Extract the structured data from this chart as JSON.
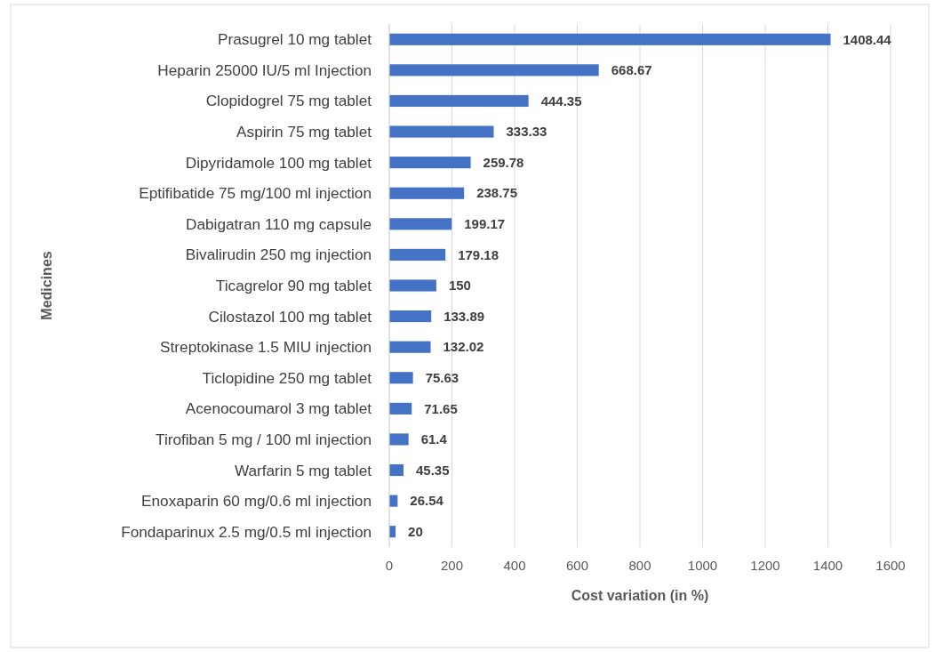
{
  "chart_data": {
    "type": "bar",
    "orientation": "horizontal",
    "xlabel": "Cost variation (in %)",
    "ylabel": "Medicines",
    "categories": [
      "Prasugrel 10 mg tablet",
      "Heparin 25000 IU/5 ml Injection",
      "Clopidogrel 75 mg tablet",
      "Aspirin 75 mg tablet",
      "Dipyridamole 100 mg tablet",
      "Eptifibatide 75 mg/100 ml injection",
      "Dabigatran 110 mg capsule",
      "Bivalirudin 250 mg injection",
      "Ticagrelor 90 mg tablet",
      "Cilostazol 100 mg tablet",
      "Streptokinase 1.5 MIU injection",
      "Ticlopidine 250 mg tablet",
      "Acenocoumarol 3 mg tablet",
      "Tirofiban 5 mg / 100 ml injection",
      "Warfarin 5 mg tablet",
      "Enoxaparin 60 mg/0.6 ml injection",
      "Fondaparinux 2.5 mg/0.5 ml injection"
    ],
    "values": [
      1408.44,
      668.67,
      444.35,
      333.33,
      259.78,
      238.75,
      199.17,
      179.18,
      150,
      133.89,
      132.02,
      75.63,
      71.65,
      61.4,
      45.35,
      26.54,
      20
    ],
    "color": "#4472c4",
    "data_labels": true,
    "xlim": [
      0,
      1600
    ],
    "xticks": [
      0,
      200,
      400,
      600,
      800,
      1000,
      1200,
      1400,
      1600
    ],
    "grid": "x"
  }
}
